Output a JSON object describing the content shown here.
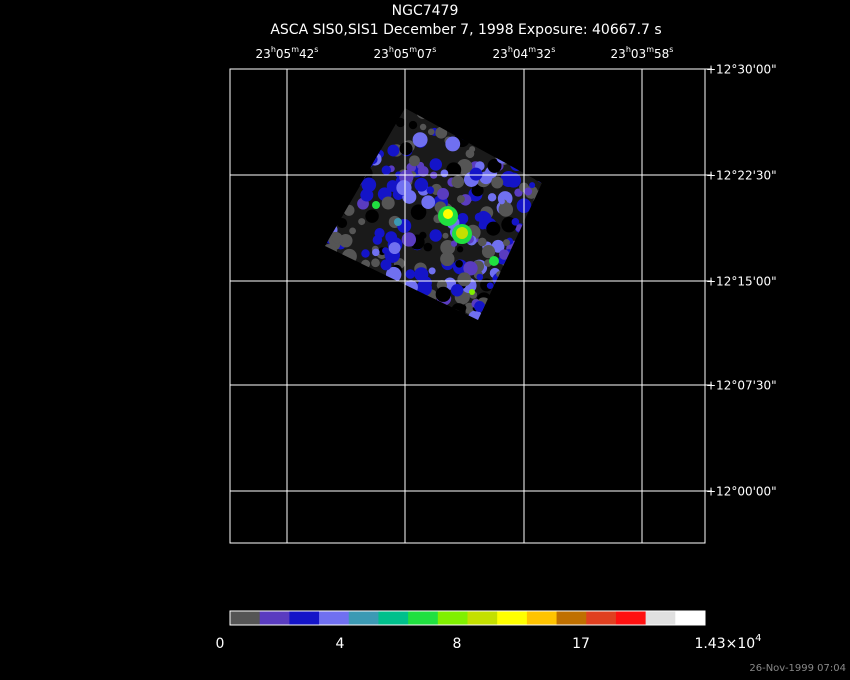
{
  "title": "NGC7479",
  "subtitle": "ASCA SIS0,SIS1 December 7, 1998 Exposure: 40667.7 s",
  "ra_labels": [
    [
      "23",
      "h",
      "05",
      "m",
      "42",
      "s"
    ],
    [
      "23",
      "h",
      "05",
      "m",
      "07",
      "s"
    ],
    [
      "23",
      "h",
      "04",
      "m",
      "32",
      "s"
    ],
    [
      "23",
      "h",
      "03",
      "m",
      "58",
      "s"
    ]
  ],
  "dec_labels": [
    "+12°30'00\"",
    "+12°22'30\"",
    "+12°15'00\"",
    "+12°07'30\"",
    "+12°00'00\""
  ],
  "colorbar": {
    "colors": [
      "#555555",
      "#5a3cc0",
      "#1414c8",
      "#7070f0",
      "#3c9ab4",
      "#00c08c",
      "#20e040",
      "#80f000",
      "#c4e000",
      "#ffff00",
      "#ffc400",
      "#c07000",
      "#e04020",
      "#ff1010",
      "#e0e0e0",
      "#ffffff"
    ],
    "labels": [
      "0",
      "4",
      "8",
      "17",
      {
        "base": "1.43×10",
        "exp": "4"
      }
    ]
  },
  "timestamp": "26-Nov-1999 07:04"
}
